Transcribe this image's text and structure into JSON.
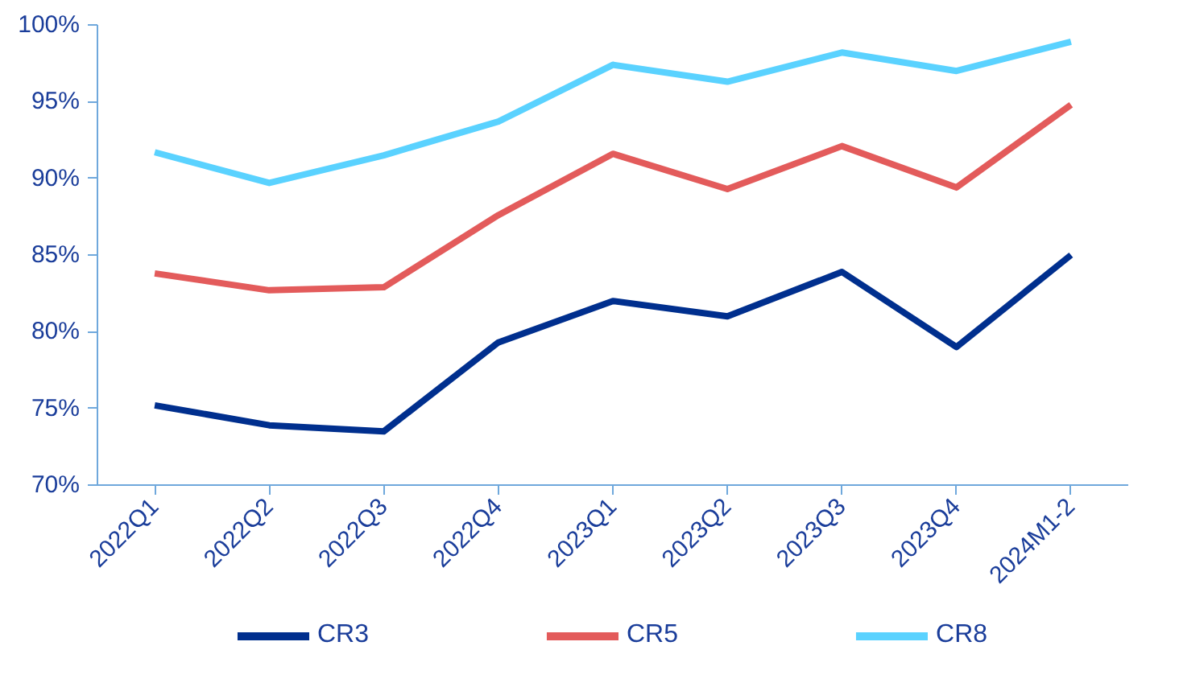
{
  "chart_data": {
    "type": "line",
    "categories": [
      "2022Q1",
      "2022Q2",
      "2022Q3",
      "2022Q4",
      "2023Q1",
      "2023Q2",
      "2023Q3",
      "2023Q4",
      "2024M1-2"
    ],
    "series": [
      {
        "name": "CR3",
        "color": "#002f8e",
        "values": [
          75.2,
          73.9,
          73.5,
          79.3,
          82.0,
          81.0,
          83.9,
          79.0,
          85.0
        ]
      },
      {
        "name": "CR5",
        "color": "#e35b5b",
        "values": [
          83.8,
          82.7,
          82.9,
          87.6,
          91.6,
          89.3,
          92.1,
          89.4,
          94.8
        ]
      },
      {
        "name": "CR8",
        "color": "#5ad2ff",
        "values": [
          91.7,
          89.7,
          91.5,
          93.7,
          97.4,
          96.3,
          98.2,
          97.0,
          98.9
        ]
      }
    ],
    "ylim": [
      70,
      100
    ],
    "yticks": [
      {
        "value": 70,
        "label": "70%"
      },
      {
        "value": 75,
        "label": "75%"
      },
      {
        "value": 80,
        "label": "80%"
      },
      {
        "value": 85,
        "label": "85%"
      },
      {
        "value": 90,
        "label": "90%"
      },
      {
        "value": 95,
        "label": "95%"
      },
      {
        "value": 100,
        "label": "100%"
      }
    ],
    "grid": false,
    "legend": "bottom",
    "marker": "none",
    "line_style": "solid"
  }
}
